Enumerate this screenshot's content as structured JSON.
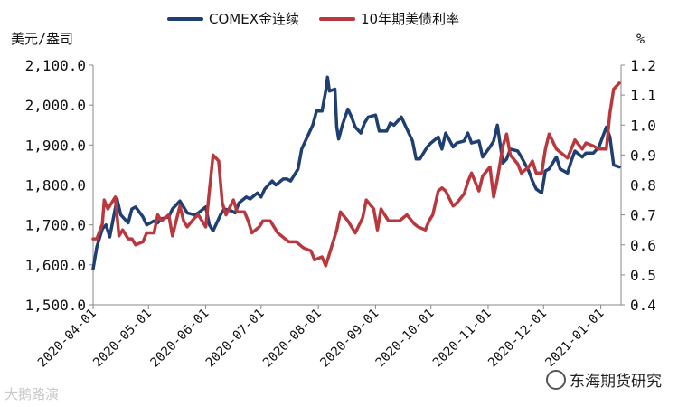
{
  "legend": {
    "series1": "COMEX金连续",
    "series2": "10年期美债利率"
  },
  "units": {
    "left": "美元/盎司",
    "right": "%"
  },
  "watermarks": {
    "left": "大鹅路演",
    "right": "东海期货研究"
  },
  "colors": {
    "gold": "#1f3f73",
    "yield": "#b8383e",
    "axis": "#888888"
  },
  "chart_data": {
    "type": "line",
    "x_ticks": [
      "2020-04-01",
      "2020-05-01",
      "2020-06-01",
      "2020-07-01",
      "2020-08-01",
      "2020-09-01",
      "2020-10-01",
      "2020-11-01",
      "2020-12-01",
      "2021-01-01"
    ],
    "x_range": [
      "2020-04-01",
      "2021-01-12"
    ],
    "y_left": {
      "ticks": [
        "1,500.0",
        "1,600.0",
        "1,700.0",
        "1,800.0",
        "1,900.0",
        "2,000.0",
        "2,100.0"
      ],
      "ylim": [
        1500,
        2100
      ],
      "unit": "美元/盎司"
    },
    "y_right": {
      "ticks": [
        "0.4",
        "0.5",
        "0.6",
        "0.7",
        "0.8",
        "0.9",
        "1.0",
        "1.1",
        "1.2"
      ],
      "ylim": [
        0.4,
        1.2
      ],
      "unit": "%"
    },
    "series": [
      {
        "name": "COMEX金连续",
        "axis": "left",
        "points": [
          [
            "2020-04-01",
            1590
          ],
          [
            "2020-04-03",
            1645
          ],
          [
            "2020-04-06",
            1690
          ],
          [
            "2020-04-08",
            1700
          ],
          [
            "2020-04-10",
            1670
          ],
          [
            "2020-04-14",
            1765
          ],
          [
            "2020-04-16",
            1725
          ],
          [
            "2020-04-20",
            1705
          ],
          [
            "2020-04-22",
            1740
          ],
          [
            "2020-04-24",
            1745
          ],
          [
            "2020-04-28",
            1720
          ],
          [
            "2020-04-30",
            1700
          ],
          [
            "2020-05-04",
            1710
          ],
          [
            "2020-05-06",
            1705
          ],
          [
            "2020-05-08",
            1715
          ],
          [
            "2020-05-12",
            1720
          ],
          [
            "2020-05-14",
            1740
          ],
          [
            "2020-05-18",
            1760
          ],
          [
            "2020-05-20",
            1745
          ],
          [
            "2020-05-22",
            1730
          ],
          [
            "2020-05-26",
            1725
          ],
          [
            "2020-05-28",
            1730
          ],
          [
            "2020-06-01",
            1745
          ],
          [
            "2020-06-03",
            1700
          ],
          [
            "2020-06-05",
            1685
          ],
          [
            "2020-06-09",
            1725
          ],
          [
            "2020-06-11",
            1740
          ],
          [
            "2020-06-15",
            1735
          ],
          [
            "2020-06-17",
            1730
          ],
          [
            "2020-06-19",
            1755
          ],
          [
            "2020-06-23",
            1770
          ],
          [
            "2020-06-25",
            1765
          ],
          [
            "2020-06-29",
            1780
          ],
          [
            "2020-07-01",
            1770
          ],
          [
            "2020-07-03",
            1790
          ],
          [
            "2020-07-07",
            1810
          ],
          [
            "2020-07-09",
            1800
          ],
          [
            "2020-07-13",
            1815
          ],
          [
            "2020-07-15",
            1815
          ],
          [
            "2020-07-17",
            1810
          ],
          [
            "2020-07-21",
            1840
          ],
          [
            "2020-07-23",
            1890
          ],
          [
            "2020-07-27",
            1930
          ],
          [
            "2020-07-29",
            1950
          ],
          [
            "2020-07-31",
            1985
          ],
          [
            "2020-08-03",
            1985
          ],
          [
            "2020-08-05",
            2035
          ],
          [
            "2020-08-06",
            2070
          ],
          [
            "2020-08-07",
            2035
          ],
          [
            "2020-08-10",
            2040
          ],
          [
            "2020-08-11",
            1945
          ],
          [
            "2020-08-12",
            1915
          ],
          [
            "2020-08-14",
            1950
          ],
          [
            "2020-08-17",
            1990
          ],
          [
            "2020-08-19",
            1970
          ],
          [
            "2020-08-21",
            1945
          ],
          [
            "2020-08-24",
            1930
          ],
          [
            "2020-08-26",
            1955
          ],
          [
            "2020-08-28",
            1970
          ],
          [
            "2020-09-01",
            1975
          ],
          [
            "2020-09-03",
            1935
          ],
          [
            "2020-09-07",
            1935
          ],
          [
            "2020-09-09",
            1955
          ],
          [
            "2020-09-11",
            1950
          ],
          [
            "2020-09-15",
            1970
          ],
          [
            "2020-09-17",
            1950
          ],
          [
            "2020-09-21",
            1910
          ],
          [
            "2020-09-23",
            1865
          ],
          [
            "2020-09-25",
            1865
          ],
          [
            "2020-09-29",
            1895
          ],
          [
            "2020-10-01",
            1905
          ],
          [
            "2020-10-05",
            1920
          ],
          [
            "2020-10-07",
            1890
          ],
          [
            "2020-10-09",
            1930
          ],
          [
            "2020-10-13",
            1895
          ],
          [
            "2020-10-15",
            1905
          ],
          [
            "2020-10-19",
            1910
          ],
          [
            "2020-10-21",
            1930
          ],
          [
            "2020-10-23",
            1905
          ],
          [
            "2020-10-27",
            1910
          ],
          [
            "2020-10-29",
            1870
          ],
          [
            "2020-11-02",
            1895
          ],
          [
            "2020-11-04",
            1910
          ],
          [
            "2020-11-06",
            1950
          ],
          [
            "2020-11-09",
            1855
          ],
          [
            "2020-11-11",
            1865
          ],
          [
            "2020-11-13",
            1890
          ],
          [
            "2020-11-17",
            1885
          ],
          [
            "2020-11-19",
            1870
          ],
          [
            "2020-11-23",
            1835
          ],
          [
            "2020-11-25",
            1810
          ],
          [
            "2020-11-27",
            1790
          ],
          [
            "2020-11-30",
            1780
          ],
          [
            "2020-12-02",
            1835
          ],
          [
            "2020-12-04",
            1840
          ],
          [
            "2020-12-08",
            1870
          ],
          [
            "2020-12-10",
            1840
          ],
          [
            "2020-12-14",
            1830
          ],
          [
            "2020-12-16",
            1860
          ],
          [
            "2020-12-18",
            1885
          ],
          [
            "2020-12-22",
            1870
          ],
          [
            "2020-12-24",
            1880
          ],
          [
            "2020-12-28",
            1880
          ],
          [
            "2020-12-31",
            1895
          ],
          [
            "2021-01-04",
            1945
          ],
          [
            "2021-01-06",
            1920
          ],
          [
            "2021-01-08",
            1850
          ],
          [
            "2021-01-11",
            1845
          ]
        ]
      },
      {
        "name": "10年期美债利率",
        "axis": "right",
        "points": [
          [
            "2020-04-01",
            0.62
          ],
          [
            "2020-04-03",
            0.62
          ],
          [
            "2020-04-06",
            0.67
          ],
          [
            "2020-04-07",
            0.75
          ],
          [
            "2020-04-09",
            0.72
          ],
          [
            "2020-04-13",
            0.76
          ],
          [
            "2020-04-15",
            0.63
          ],
          [
            "2020-04-17",
            0.65
          ],
          [
            "2020-04-20",
            0.62
          ],
          [
            "2020-04-22",
            0.62
          ],
          [
            "2020-04-24",
            0.6
          ],
          [
            "2020-04-28",
            0.61
          ],
          [
            "2020-04-30",
            0.64
          ],
          [
            "2020-05-04",
            0.64
          ],
          [
            "2020-05-06",
            0.7
          ],
          [
            "2020-05-08",
            0.68
          ],
          [
            "2020-05-12",
            0.7
          ],
          [
            "2020-05-14",
            0.63
          ],
          [
            "2020-05-18",
            0.73
          ],
          [
            "2020-05-20",
            0.68
          ],
          [
            "2020-05-22",
            0.66
          ],
          [
            "2020-05-26",
            0.69
          ],
          [
            "2020-05-28",
            0.7
          ],
          [
            "2020-06-01",
            0.66
          ],
          [
            "2020-06-03",
            0.78
          ],
          [
            "2020-06-05",
            0.9
          ],
          [
            "2020-06-08",
            0.88
          ],
          [
            "2020-06-10",
            0.74
          ],
          [
            "2020-06-12",
            0.7
          ],
          [
            "2020-06-16",
            0.75
          ],
          [
            "2020-06-18",
            0.71
          ],
          [
            "2020-06-22",
            0.71
          ],
          [
            "2020-06-24",
            0.68
          ],
          [
            "2020-06-26",
            0.64
          ],
          [
            "2020-06-30",
            0.66
          ],
          [
            "2020-07-02",
            0.68
          ],
          [
            "2020-07-06",
            0.68
          ],
          [
            "2020-07-08",
            0.66
          ],
          [
            "2020-07-10",
            0.64
          ],
          [
            "2020-07-14",
            0.62
          ],
          [
            "2020-07-16",
            0.61
          ],
          [
            "2020-07-20",
            0.61
          ],
          [
            "2020-07-22",
            0.6
          ],
          [
            "2020-07-24",
            0.59
          ],
          [
            "2020-07-28",
            0.58
          ],
          [
            "2020-07-30",
            0.55
          ],
          [
            "2020-08-03",
            0.56
          ],
          [
            "2020-08-05",
            0.53
          ],
          [
            "2020-08-07",
            0.57
          ],
          [
            "2020-08-11",
            0.65
          ],
          [
            "2020-08-13",
            0.71
          ],
          [
            "2020-08-17",
            0.68
          ],
          [
            "2020-08-19",
            0.66
          ],
          [
            "2020-08-21",
            0.64
          ],
          [
            "2020-08-25",
            0.69
          ],
          [
            "2020-08-27",
            0.75
          ],
          [
            "2020-08-31",
            0.72
          ],
          [
            "2020-09-02",
            0.65
          ],
          [
            "2020-09-04",
            0.72
          ],
          [
            "2020-09-08",
            0.68
          ],
          [
            "2020-09-10",
            0.68
          ],
          [
            "2020-09-14",
            0.68
          ],
          [
            "2020-09-16",
            0.69
          ],
          [
            "2020-09-18",
            0.7
          ],
          [
            "2020-09-22",
            0.67
          ],
          [
            "2020-09-24",
            0.66
          ],
          [
            "2020-09-28",
            0.65
          ],
          [
            "2020-09-30",
            0.68
          ],
          [
            "2020-10-02",
            0.7
          ],
          [
            "2020-10-05",
            0.78
          ],
          [
            "2020-10-07",
            0.79
          ],
          [
            "2020-10-09",
            0.78
          ],
          [
            "2020-10-13",
            0.73
          ],
          [
            "2020-10-15",
            0.74
          ],
          [
            "2020-10-19",
            0.77
          ],
          [
            "2020-10-21",
            0.81
          ],
          [
            "2020-10-23",
            0.84
          ],
          [
            "2020-10-27",
            0.78
          ],
          [
            "2020-10-29",
            0.83
          ],
          [
            "2020-11-02",
            0.86
          ],
          [
            "2020-11-04",
            0.76
          ],
          [
            "2020-11-06",
            0.82
          ],
          [
            "2020-11-09",
            0.93
          ],
          [
            "2020-11-11",
            0.97
          ],
          [
            "2020-11-13",
            0.9
          ],
          [
            "2020-11-17",
            0.87
          ],
          [
            "2020-11-19",
            0.84
          ],
          [
            "2020-11-23",
            0.86
          ],
          [
            "2020-11-25",
            0.88
          ],
          [
            "2020-11-27",
            0.84
          ],
          [
            "2020-11-30",
            0.84
          ],
          [
            "2020-12-02",
            0.92
          ],
          [
            "2020-12-04",
            0.97
          ],
          [
            "2020-12-08",
            0.92
          ],
          [
            "2020-12-10",
            0.91
          ],
          [
            "2020-12-14",
            0.89
          ],
          [
            "2020-12-16",
            0.92
          ],
          [
            "2020-12-18",
            0.95
          ],
          [
            "2020-12-22",
            0.92
          ],
          [
            "2020-12-24",
            0.94
          ],
          [
            "2020-12-28",
            0.93
          ],
          [
            "2020-12-31",
            0.92
          ],
          [
            "2021-01-04",
            0.92
          ],
          [
            "2021-01-06",
            1.04
          ],
          [
            "2021-01-08",
            1.12
          ],
          [
            "2021-01-11",
            1.14
          ]
        ]
      }
    ]
  }
}
